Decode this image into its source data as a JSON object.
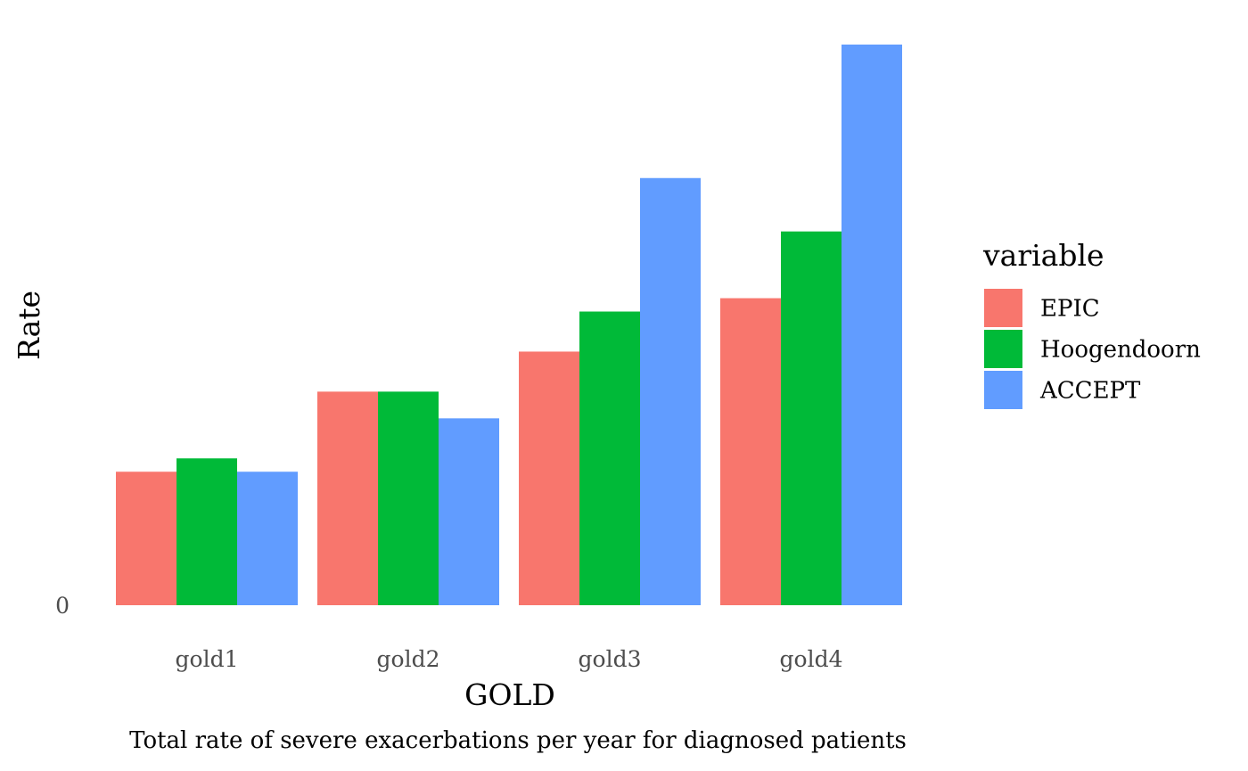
{
  "chart_data": {
    "type": "bar",
    "title": "",
    "caption": "Total rate of severe exacerbations per year for diagnosed patients",
    "xlabel": "GOLD",
    "ylabel": "Rate",
    "categories": [
      "gold1",
      "gold2",
      "gold3",
      "gold4"
    ],
    "y_ticks": [
      {
        "value": 0,
        "label": "0"
      }
    ],
    "ylim": [
      0,
      4.2
    ],
    "grid": false,
    "legend": {
      "title": "variable",
      "position": "right"
    },
    "series": [
      {
        "name": "EPIC",
        "color": "#F8766D",
        "values": [
          1.0,
          1.6,
          1.9,
          2.3
        ]
      },
      {
        "name": "Hoogendoorn",
        "color": "#00BA38",
        "values": [
          1.1,
          1.6,
          2.2,
          2.8
        ]
      },
      {
        "name": "ACCEPT",
        "color": "#619CFF",
        "values": [
          1.0,
          1.4,
          3.2,
          4.2
        ]
      }
    ]
  }
}
